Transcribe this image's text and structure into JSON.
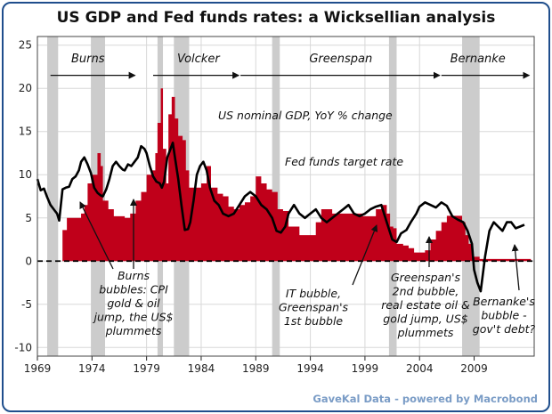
{
  "title": "US GDP and Fed funds rates: a Wicksellian analysis",
  "credit": "GaveKal Data - powered by Macrobond",
  "chart_data": {
    "type": "line",
    "xlim": [
      1969,
      2014.5
    ],
    "ylim": [
      -11,
      26
    ],
    "x_ticks": [
      1969,
      1974,
      1979,
      1984,
      1989,
      1994,
      1999,
      2004,
      2009
    ],
    "y_ticks": [
      25,
      20,
      15,
      10,
      5,
      0,
      -5,
      -10
    ],
    "grid": true,
    "colors": {
      "fed_funds": "#c0001a",
      "gdp": "#000000",
      "recession": "#cccccc",
      "frame": "#1f4e8c"
    },
    "recessions": [
      [
        1969.9,
        1970.9
      ],
      [
        1973.9,
        1975.2
      ],
      [
        1980.0,
        1980.5
      ],
      [
        1981.5,
        1982.9
      ],
      [
        1990.5,
        1991.2
      ],
      [
        2001.2,
        2001.9
      ],
      [
        2007.9,
        2009.5
      ]
    ],
    "chairs": [
      {
        "name": "Burns",
        "start": 1970.2,
        "end": 1978.1
      },
      {
        "name": "Volcker",
        "start": 1979.6,
        "end": 1987.6
      },
      {
        "name": "Greenspan",
        "start": 1987.6,
        "end": 2006.0
      },
      {
        "name": "Bernanke",
        "start": 2006.0,
        "end": 2014.2
      }
    ],
    "series": [
      {
        "name": "US nominal GDP, YoY % change",
        "type": "line",
        "x": [
          1969.0,
          1969.3,
          1969.6,
          1969.9,
          1970.2,
          1970.5,
          1970.8,
          1971.0,
          1971.3,
          1971.6,
          1971.9,
          1972.2,
          1972.5,
          1972.8,
          1973.0,
          1973.3,
          1973.6,
          1973.9,
          1974.2,
          1974.5,
          1974.8,
          1975.0,
          1975.3,
          1975.6,
          1975.9,
          1976.2,
          1976.5,
          1976.8,
          1977.0,
          1977.3,
          1977.6,
          1977.9,
          1978.2,
          1978.5,
          1978.8,
          1979.0,
          1979.3,
          1979.6,
          1979.9,
          1980.2,
          1980.4,
          1980.6,
          1980.9,
          1981.2,
          1981.4,
          1981.6,
          1981.9,
          1982.2,
          1982.5,
          1982.8,
          1983.0,
          1983.3,
          1983.6,
          1983.9,
          1984.2,
          1984.5,
          1984.8,
          1985.2,
          1985.6,
          1986.0,
          1986.5,
          1987.0,
          1987.5,
          1988.0,
          1988.5,
          1989.0,
          1989.5,
          1990.0,
          1990.5,
          1990.9,
          1991.3,
          1991.7,
          1992.0,
          1992.5,
          1993.0,
          1993.5,
          1994.0,
          1994.5,
          1995.0,
          1995.5,
          1996.0,
          1996.5,
          1997.0,
          1997.5,
          1998.0,
          1998.5,
          1999.0,
          1999.5,
          2000.0,
          2000.5,
          2001.0,
          2001.5,
          2001.9,
          2002.3,
          2002.8,
          2003.2,
          2003.7,
          2004.0,
          2004.5,
          2005.0,
          2005.5,
          2006.0,
          2006.5,
          2007.0,
          2007.5,
          2008.0,
          2008.4,
          2008.8,
          2009.0,
          2009.3,
          2009.6,
          2010.0,
          2010.4,
          2010.8,
          2011.2,
          2011.6,
          2012.0,
          2012.4,
          2012.8,
          2013.2,
          2013.6
        ],
        "y": [
          9.5,
          8.2,
          8.4,
          7.4,
          6.5,
          6.0,
          5.5,
          4.7,
          8.3,
          8.5,
          8.6,
          9.5,
          9.8,
          10.5,
          11.5,
          12.0,
          11.2,
          10.2,
          8.5,
          7.9,
          7.6,
          7.5,
          8.3,
          9.5,
          11.0,
          11.5,
          11.0,
          10.6,
          10.5,
          11.2,
          11.0,
          11.5,
          12.0,
          13.3,
          13.0,
          12.5,
          11.0,
          9.8,
          9.2,
          9.0,
          8.5,
          9.2,
          12.0,
          13.0,
          13.7,
          12.0,
          9.5,
          6.4,
          3.6,
          3.7,
          4.5,
          7.0,
          10.0,
          11.0,
          11.5,
          10.5,
          8.5,
          7.0,
          6.5,
          5.5,
          5.2,
          5.5,
          6.5,
          7.5,
          8.0,
          7.5,
          6.5,
          6.0,
          5.0,
          3.5,
          3.3,
          4.0,
          5.5,
          6.5,
          5.5,
          5.0,
          5.5,
          6.0,
          5.0,
          4.5,
          5.0,
          5.5,
          6.0,
          6.5,
          5.5,
          5.2,
          5.5,
          6.0,
          6.3,
          6.5,
          4.5,
          2.5,
          2.2,
          3.2,
          3.6,
          4.5,
          5.5,
          6.3,
          6.8,
          6.5,
          6.2,
          6.8,
          6.4,
          5.2,
          4.8,
          4.5,
          3.5,
          2.0,
          -1.0,
          -2.5,
          -3.5,
          0.5,
          3.5,
          4.5,
          4.0,
          3.5,
          4.5,
          4.5,
          3.8,
          4.0,
          4.2
        ]
      },
      {
        "name": "Fed funds target rate",
        "type": "area",
        "x": [
          1969.0,
          1969.5,
          1970.0,
          1970.5,
          1971.0,
          1971.3,
          1971.7,
          1972.0,
          1972.5,
          1973.0,
          1973.3,
          1973.6,
          1974.0,
          1974.5,
          1974.8,
          1975.0,
          1975.5,
          1976.0,
          1976.5,
          1977.0,
          1977.5,
          1978.0,
          1978.5,
          1979.0,
          1979.5,
          1979.8,
          1980.0,
          1980.3,
          1980.5,
          1980.8,
          1981.0,
          1981.3,
          1981.6,
          1981.9,
          1982.3,
          1982.6,
          1982.9,
          1983.5,
          1984.0,
          1984.5,
          1984.9,
          1985.5,
          1986.0,
          1986.5,
          1987.0,
          1987.5,
          1988.0,
          1988.5,
          1989.0,
          1989.5,
          1990.0,
          1990.5,
          1991.0,
          1991.5,
          1992.0,
          1993.0,
          1994.0,
          1994.5,
          1995.0,
          1996.0,
          1997.0,
          1998.0,
          1998.8,
          1999.5,
          2000.0,
          2000.5,
          2001.0,
          2001.3,
          2001.6,
          2001.9,
          2002.5,
          2003.0,
          2003.5,
          2004.0,
          2004.5,
          2005.0,
          2005.5,
          2006.0,
          2006.5,
          2007.0,
          2007.5,
          2007.9,
          2008.2,
          2008.5,
          2008.9,
          2009.5,
          2010.0,
          2011.0,
          2012.0,
          2013.0,
          2014.0
        ],
        "y": [
          0.0,
          0.0,
          0.0,
          0.0,
          0.0,
          3.6,
          5.0,
          5.0,
          5.0,
          5.5,
          6.5,
          9.0,
          10.0,
          12.5,
          11.0,
          7.0,
          6.0,
          5.2,
          5.2,
          5.0,
          5.5,
          7.0,
          8.0,
          10.0,
          10.5,
          12.5,
          16.0,
          20.0,
          13.0,
          9.0,
          17.0,
          19.0,
          16.5,
          14.5,
          14.0,
          10.5,
          8.5,
          8.5,
          9.0,
          11.0,
          8.5,
          7.8,
          7.5,
          6.3,
          6.0,
          6.5,
          6.8,
          7.5,
          9.8,
          9.0,
          8.3,
          8.0,
          6.0,
          5.8,
          4.0,
          3.0,
          3.0,
          4.5,
          6.0,
          5.5,
          5.5,
          5.5,
          5.2,
          5.2,
          6.0,
          6.5,
          5.5,
          4.0,
          3.8,
          2.0,
          1.8,
          1.5,
          1.0,
          1.0,
          1.25,
          2.5,
          3.5,
          4.5,
          5.25,
          5.25,
          5.25,
          4.5,
          3.0,
          2.0,
          0.5,
          0.25,
          0.25,
          0.25,
          0.25,
          0.25,
          0.25
        ]
      }
    ],
    "annotations": [
      {
        "lines": [
          "Burns",
          "bubbles: CPI",
          "gold & oil",
          "jump, the US$",
          "plummets"
        ]
      },
      {
        "lines": [
          "IT bubble,",
          "Greenspan's",
          "1st bubble"
        ]
      },
      {
        "lines": [
          "Greenspan's",
          "2nd bubble,",
          "real estate oil &",
          "gold jump, US$",
          "plummets"
        ]
      },
      {
        "lines": [
          "Bernanke's",
          "bubble -",
          "gov't debt?"
        ]
      }
    ]
  }
}
